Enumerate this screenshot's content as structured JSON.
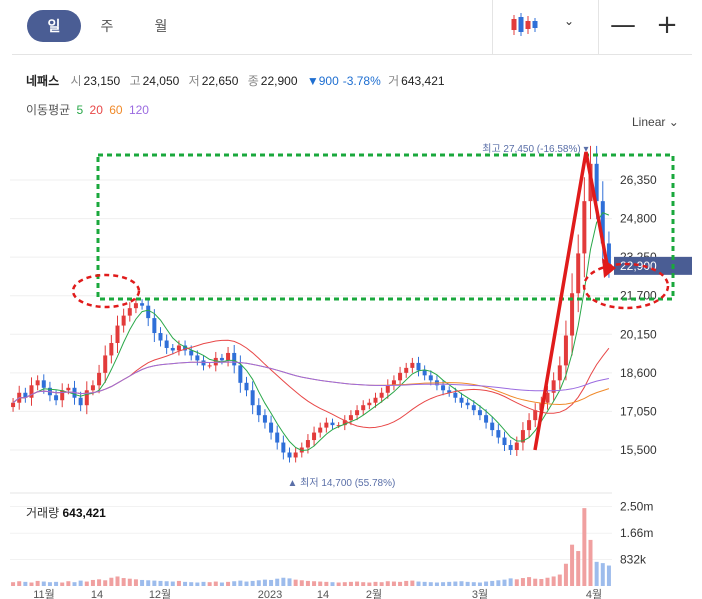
{
  "toolbar": {
    "periods": [
      {
        "label": "일",
        "active": true
      },
      {
        "label": "주",
        "active": false
      },
      {
        "label": "월",
        "active": false
      }
    ],
    "chart_type_icon": "candlestick-icon",
    "dropdown_icon": "chevron-down-icon",
    "zoom_out_icon": "minus-icon",
    "zoom_in_icon": "plus-icon",
    "zoom_out": "—",
    "zoom_in": "+"
  },
  "quote": {
    "name": "네패스",
    "open_label": "시",
    "open": "23,150",
    "high_label": "고",
    "high": "24,050",
    "low_label": "저",
    "low": "22,650",
    "close_label": "종",
    "close": "22,900",
    "change": "▼900",
    "change_pct": "-3.78%",
    "volume_label": "거",
    "volume": "643,421"
  },
  "moving_average": {
    "label": "이동평균",
    "periods": [
      {
        "label": "5",
        "color": "#2aa84a"
      },
      {
        "label": "20",
        "color": "#e84848"
      },
      {
        "label": "60",
        "color": "#f08a2a"
      },
      {
        "label": "120",
        "color": "#9b6be0"
      }
    ]
  },
  "scale_selector": {
    "label": "Linear",
    "icon": "chevron-down-icon"
  },
  "colors": {
    "up": "#e23b3b",
    "down": "#2f6fd8",
    "accent": "#4a5d94",
    "annotation_green": "#1aa83c",
    "annotation_red": "#e01b1b"
  },
  "chart_data": {
    "type": "candlestick",
    "y_ticks": [
      15500,
      17050,
      18600,
      20150,
      21700,
      23250,
      24800,
      26350
    ],
    "y_tick_labels": [
      "15,500",
      "17,050",
      "18,600",
      "20,150",
      "21,700",
      "23,250",
      "24,800",
      "26,350"
    ],
    "x_tick_labels": [
      "11월",
      "14",
      "12월",
      "2023",
      "14",
      "2월",
      "3월",
      "4월"
    ],
    "last_price": {
      "value": 22900,
      "label": "22,900"
    },
    "max_marker": {
      "value": 27450,
      "label_prefix": "최고",
      "label": "27,450 (-16.58%)"
    },
    "min_marker": {
      "value": 14700,
      "label_prefix": "최저",
      "label": "14,700 (55.78%)"
    },
    "close_series": [
      17400,
      17800,
      17600,
      18100,
      18300,
      18000,
      17700,
      17500,
      17900,
      18000,
      17600,
      17300,
      17900,
      18100,
      18600,
      19300,
      19800,
      20500,
      20900,
      21200,
      21400,
      21300,
      20800,
      20200,
      19900,
      19600,
      19500,
      19700,
      19500,
      19300,
      19100,
      18900,
      18900,
      19200,
      19100,
      19400,
      18900,
      18200,
      17900,
      17300,
      16900,
      16600,
      16200,
      15800,
      15400,
      15200,
      15400,
      15600,
      15900,
      16200,
      16400,
      16600,
      16500,
      16500,
      16700,
      16900,
      17100,
      17300,
      17400,
      17600,
      17800,
      18100,
      18300,
      18600,
      18800,
      19000,
      18700,
      18500,
      18300,
      18100,
      17900,
      17800,
      17600,
      17400,
      17300,
      17100,
      16900,
      16600,
      16300,
      16000,
      15700,
      15500,
      15800,
      16300,
      16700,
      17100,
      17400,
      17800,
      18300,
      18900,
      20100,
      21800,
      23400,
      25500,
      27000,
      25500,
      23800,
      22900
    ],
    "volume": {
      "title_label": "거래량",
      "last_label": "643,421",
      "y_ticks": [
        832000,
        1660000,
        2500000
      ],
      "y_tick_labels": [
        "832k",
        "1.66m",
        "2.50m"
      ],
      "values": [
        120000,
        150000,
        130000,
        110000,
        160000,
        140000,
        120000,
        130000,
        110000,
        150000,
        120000,
        170000,
        140000,
        190000,
        210000,
        180000,
        260000,
        300000,
        250000,
        230000,
        210000,
        190000,
        180000,
        170000,
        160000,
        150000,
        140000,
        160000,
        130000,
        120000,
        110000,
        130000,
        120000,
        140000,
        110000,
        130000,
        150000,
        170000,
        140000,
        160000,
        180000,
        200000,
        190000,
        230000,
        260000,
        240000,
        200000,
        180000,
        160000,
        150000,
        140000,
        130000,
        120000,
        110000,
        120000,
        130000,
        140000,
        120000,
        110000,
        130000,
        120000,
        150000,
        140000,
        130000,
        160000,
        170000,
        140000,
        130000,
        120000,
        110000,
        120000,
        130000,
        140000,
        150000,
        130000,
        120000,
        110000,
        140000,
        160000,
        180000,
        200000,
        240000,
        210000,
        250000,
        280000,
        230000,
        220000,
        260000,
        300000,
        360000,
        700000,
        1300000,
        1100000,
        2450000,
        1450000,
        760000,
        720000,
        643421
      ]
    }
  }
}
